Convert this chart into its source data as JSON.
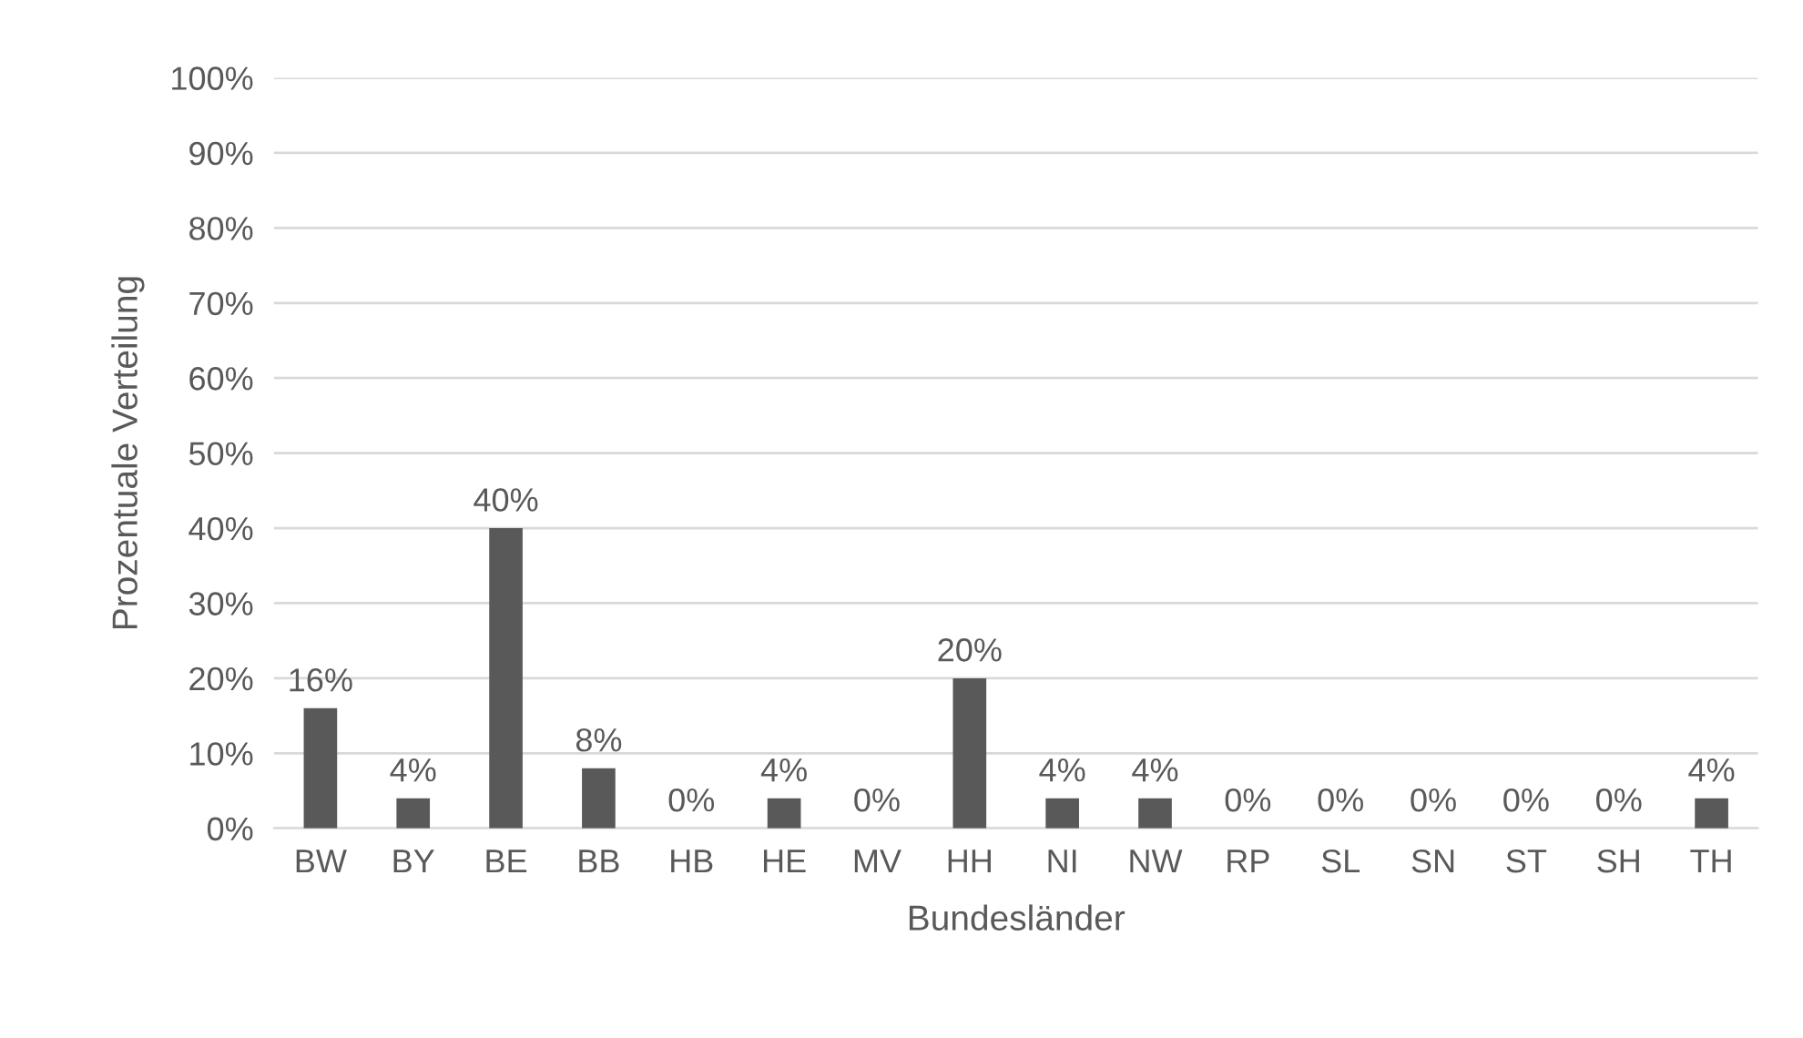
{
  "chart_data": {
    "type": "bar",
    "xlabel": "Bundesländer",
    "ylabel": "Prozentuale Verteilung",
    "categories": [
      "BW",
      "BY",
      "BE",
      "BB",
      "HB",
      "HE",
      "MV",
      "HH",
      "NI",
      "NW",
      "RP",
      "SL",
      "SN",
      "ST",
      "SH",
      "TH"
    ],
    "values": [
      16,
      4,
      40,
      8,
      0,
      4,
      0,
      20,
      4,
      4,
      0,
      0,
      0,
      0,
      0,
      4
    ],
    "value_labels": [
      "16%",
      "4%",
      "40%",
      "8%",
      "0%",
      "4%",
      "0%",
      "20%",
      "4%",
      "4%",
      "0%",
      "0%",
      "0%",
      "0%",
      "0%",
      "4%"
    ],
    "color": "#595959",
    "ylim": [
      0,
      100
    ],
    "yticks": [
      {
        "value": 0,
        "label": "0%"
      },
      {
        "value": 10,
        "label": "10%"
      },
      {
        "value": 20,
        "label": "20%"
      },
      {
        "value": 30,
        "label": "30%"
      },
      {
        "value": 40,
        "label": "40%"
      },
      {
        "value": 50,
        "label": "50%"
      },
      {
        "value": 60,
        "label": "60%"
      },
      {
        "value": 70,
        "label": "70%"
      },
      {
        "value": 80,
        "label": "80%"
      },
      {
        "value": 90,
        "label": "90%"
      },
      {
        "value": 100,
        "label": "100%"
      }
    ],
    "grid": "y"
  }
}
